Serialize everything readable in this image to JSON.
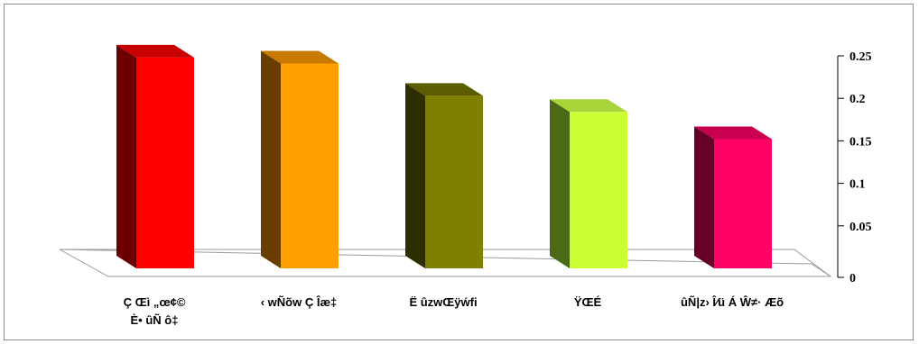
{
  "chart_data": {
    "type": "bar",
    "style": "3d-column",
    "categories": [
      [
        "Ç Œì „œ¢©",
        "È• ûÑ ô‡"
      ],
      [
        "‹ wÑõw Ç Îæ‡"
      ],
      [
        "Ë ûzwŒÿẃfi"
      ],
      [
        "ŸŒÉ"
      ],
      [
        "ûÑ|z› Î⁄ü Á Ŵ≠· Æõ"
      ]
    ],
    "values": [
      0.248,
      0.241,
      0.203,
      0.184,
      0.152
    ],
    "colors": [
      {
        "front": "#ff0000",
        "side": "#6b0000",
        "top": "#c80000"
      },
      {
        "front": "#ffa000",
        "side": "#6b3c00",
        "top": "#c87a00"
      },
      {
        "front": "#808000",
        "side": "#2e2e00",
        "top": "#5c5c00"
      },
      {
        "front": "#ccff33",
        "side": "#4a6a15",
        "top": "#a8d63a"
      },
      {
        "front": "#ff0066",
        "side": "#660026",
        "top": "#c8004f"
      }
    ],
    "ylim": [
      0,
      0.25
    ],
    "yticks": [
      0,
      0.05,
      0.1,
      0.15,
      0.2,
      0.25
    ],
    "ytick_labels": [
      "0",
      "0.05",
      "0.1",
      "0.15",
      "0.2",
      "0.25"
    ],
    "y_axis_side": "right",
    "grid": false,
    "legend": "none",
    "title": "",
    "xlabel": "",
    "ylabel": ""
  }
}
